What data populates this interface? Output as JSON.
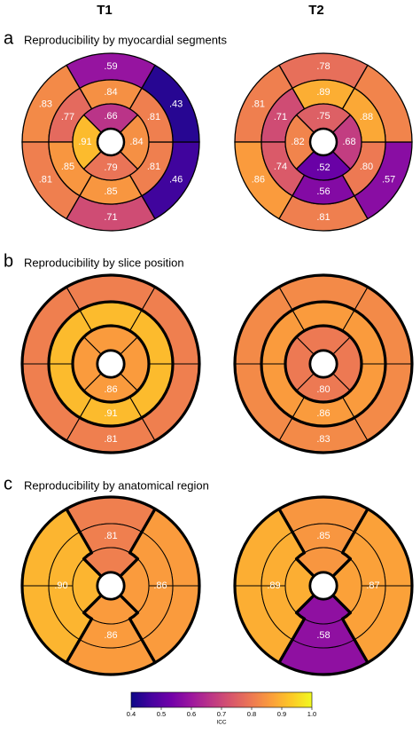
{
  "column_titles": [
    "T1",
    "T2"
  ],
  "panels": [
    {
      "letter": "a",
      "title": "Reproducibility by myocardial segments"
    },
    {
      "letter": "b",
      "title": "Reproducibility by slice position"
    },
    {
      "letter": "c",
      "title": "Reproducibility by anatomical region"
    }
  ],
  "chart_data": [
    {
      "type": "bullseye",
      "mode": "segments",
      "values": [
        0.59,
        0.83,
        0.81,
        0.71,
        0.46,
        0.43,
        0.84,
        0.77,
        0.85,
        0.85,
        0.81,
        0.81,
        0.66,
        0.91,
        0.79,
        0.84
      ],
      "value_labels": [
        ".59",
        ".83",
        ".81",
        ".71",
        ".46",
        ".43",
        ".84",
        ".77",
        ".85",
        ".85",
        ".81",
        ".81",
        ".66",
        ".91",
        ".79",
        ".84"
      ]
    },
    {
      "type": "bullseye",
      "mode": "segments",
      "values": [
        0.78,
        0.81,
        0.86,
        0.81,
        0.57,
        0.82,
        0.89,
        0.71,
        0.74,
        0.56,
        0.8,
        0.88,
        0.75,
        0.82,
        0.52,
        0.68
      ],
      "value_labels": [
        ".78",
        ".81",
        ".86",
        ".81",
        ".57",
        null,
        ".89",
        ".71",
        ".74",
        ".56",
        ".80",
        ".88",
        ".75",
        ".82",
        ".52",
        ".68"
      ]
    },
    {
      "type": "bullseye",
      "mode": "rings",
      "values": [
        0.81,
        0.91,
        0.86
      ],
      "value_labels": [
        ".81",
        ".91",
        ".86"
      ]
    },
    {
      "type": "bullseye",
      "mode": "rings",
      "values": [
        0.83,
        0.86,
        0.8
      ],
      "value_labels": [
        ".83",
        ".86",
        ".80"
      ]
    },
    {
      "type": "bullseye",
      "mode": "regions",
      "values": [
        0.81,
        0.9,
        0.86,
        0.86
      ],
      "value_labels": [
        ".81",
        ".90",
        ".86",
        ".86"
      ]
    },
    {
      "type": "bullseye",
      "mode": "regions",
      "values": [
        0.85,
        0.89,
        0.58,
        0.87
      ],
      "value_labels": [
        ".85",
        ".89",
        ".58",
        ".87"
      ]
    }
  ],
  "colorbar": {
    "type": "colorbar",
    "label": "ICC",
    "xlim": [
      0.4,
      1.0
    ],
    "xticks": [
      0.4,
      0.5,
      0.6,
      0.7,
      0.8,
      0.9,
      {
        "value": 1.0,
        "label": "1.0"
      }
    ],
    "colors": [
      "#0d0887",
      "#46039f",
      "#7201a8",
      "#9c179e",
      "#bd3786",
      "#d8576b",
      "#ed7953",
      "#fb9f3a",
      "#fdca26",
      "#f0f921"
    ]
  }
}
